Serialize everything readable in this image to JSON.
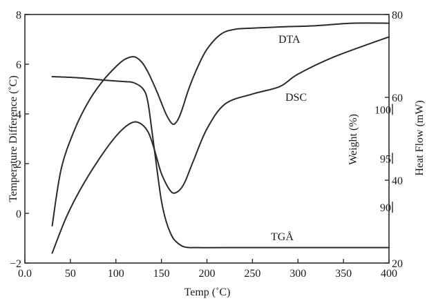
{
  "chart_data": {
    "type": "line",
    "xlabel": "Temp (˚C)",
    "ylabel_left": "Temperature Difference (˚C)",
    "ylabel_weight": "Weight (%)",
    "ylabel_heat": "Heat Flow (mW)",
    "xlim": [
      0,
      400
    ],
    "ylim_left": [
      -2,
      8
    ],
    "ylim_heat": [
      20,
      80
    ],
    "ylim_weight": [
      84.3,
      109.7
    ],
    "grid": false,
    "x_ticks": [
      {
        "value": 0,
        "label": "0.0"
      },
      {
        "value": 50,
        "label": "50"
      },
      {
        "value": 100,
        "label": "100"
      },
      {
        "value": 150,
        "label": "150"
      },
      {
        "value": 200,
        "label": "200"
      },
      {
        "value": 250,
        "label": "250"
      },
      {
        "value": 300,
        "label": "300"
      },
      {
        "value": 350,
        "label": "350"
      },
      {
        "value": 400,
        "label": "400"
      }
    ],
    "y_left_ticks": [
      -2,
      0,
      2,
      4,
      6,
      8
    ],
    "y_left_tick_labels": [
      "−2",
      "0",
      "2",
      "4",
      "6",
      "8"
    ],
    "y_heat_ticks": [
      20,
      40,
      60,
      80
    ],
    "y_heat_tick_labels": [
      "20",
      "40",
      "60",
      "80"
    ],
    "y_weight_ticks": [
      90,
      95,
      100
    ],
    "y_weight_tick_labels": [
      "90",
      "95",
      "100"
    ],
    "series": [
      {
        "name": "DTA",
        "axis": "left",
        "x": [
          30,
          40,
          55,
          70,
          85,
          100,
          110,
          120,
          128,
          135,
          145,
          155,
          162,
          167,
          172,
          180,
          190,
          200,
          215,
          230,
          250,
          280,
          320,
          360,
          400
        ],
        "y": [
          -0.5,
          1.8,
          3.4,
          4.5,
          5.3,
          5.9,
          6.2,
          6.3,
          6.1,
          5.7,
          4.9,
          4.0,
          3.6,
          3.7,
          4.1,
          5.0,
          5.9,
          6.6,
          7.2,
          7.4,
          7.45,
          7.5,
          7.55,
          7.65,
          7.65
        ]
      },
      {
        "name": "DSC",
        "axis": "left",
        "x": [
          30,
          45,
          60,
          80,
          100,
          115,
          125,
          135,
          142,
          150,
          160,
          167,
          175,
          185,
          200,
          220,
          250,
          280,
          300,
          340,
          400
        ],
        "y": [
          -1.6,
          -0.2,
          0.9,
          2.1,
          3.1,
          3.6,
          3.65,
          3.3,
          2.6,
          1.6,
          0.9,
          0.85,
          1.2,
          2.1,
          3.4,
          4.4,
          4.8,
          5.1,
          5.6,
          6.3,
          7.1
        ]
      },
      {
        "name": "TGÅ",
        "axis": "left",
        "x": [
          30,
          60,
          90,
          110,
          120,
          130,
          135,
          140,
          145,
          150,
          155,
          160,
          165,
          175,
          190,
          220,
          300,
          400
        ],
        "y": [
          5.5,
          5.45,
          5.35,
          5.3,
          5.25,
          5.0,
          4.5,
          3.2,
          1.8,
          0.5,
          -0.3,
          -0.8,
          -1.1,
          -1.35,
          -1.38,
          -1.38,
          -1.38,
          -1.38
        ]
      }
    ]
  }
}
